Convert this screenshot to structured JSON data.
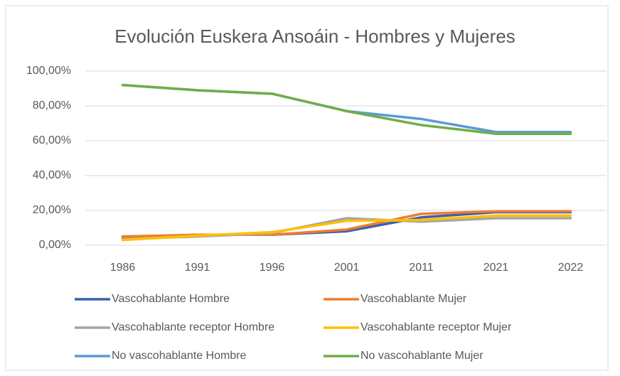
{
  "chart_data": {
    "type": "line",
    "title": "Evolución Euskera Ansoáin - Hombres y Mujeres",
    "categories": [
      "1986",
      "1991",
      "1996",
      "2001",
      "2011",
      "2021",
      "2022"
    ],
    "series": [
      {
        "name": "Vascohablante Hombre",
        "color": "#3a5fae",
        "values": [
          4,
          6,
          6,
          8,
          16,
          19,
          19
        ]
      },
      {
        "name": "Vascohablante Mujer",
        "color": "#ed7d31",
        "values": [
          5,
          6,
          6,
          9,
          18,
          19.5,
          19.5
        ]
      },
      {
        "name": "Vascohablante receptor Hombre",
        "color": "#a5a5a5",
        "values": [
          3.5,
          5,
          7,
          15.5,
          13.5,
          15.5,
          15.5
        ]
      },
      {
        "name": "Vascohablante receptor Mujer",
        "color": "#ffc000",
        "values": [
          3,
          5.5,
          7.5,
          14,
          14.5,
          17,
          17
        ]
      },
      {
        "name": "No vascohablante Hombre",
        "color": "#5b9bd5",
        "values": [
          92,
          89,
          87,
          77,
          72.5,
          65,
          65
        ]
      },
      {
        "name": "No vascohablante Mujer",
        "color": "#70ad47",
        "values": [
          92,
          89,
          87,
          77,
          69,
          64,
          64
        ]
      }
    ],
    "ylim": [
      0,
      100
    ],
    "yticks": [
      {
        "value": 0,
        "label": "0,00%"
      },
      {
        "value": 20,
        "label": "20,00%"
      },
      {
        "value": 40,
        "label": "40,00%"
      },
      {
        "value": 60,
        "label": "60,00%"
      },
      {
        "value": 80,
        "label": "80,00%"
      },
      {
        "value": 100,
        "label": "100,00%"
      }
    ],
    "grid": true
  }
}
